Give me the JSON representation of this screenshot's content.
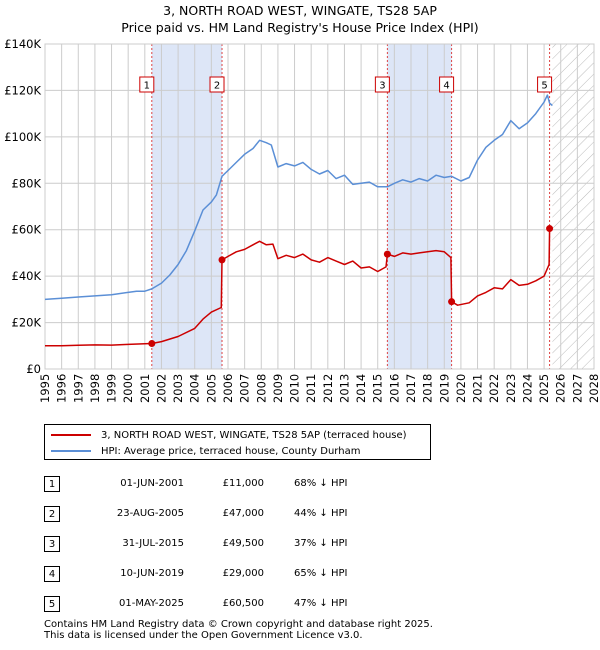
{
  "title_line1": "3, NORTH ROAD WEST, WINGATE, TS28 5AP",
  "title_line2": "Price paid vs. HM Land Registry's House Price Index (HPI)",
  "colors": {
    "property": "#cc0000",
    "hpi": "#5b8fd6",
    "shade": "#dde6f7",
    "grid": "#cccccc"
  },
  "chart_data": {
    "type": "line",
    "title": "3, NORTH ROAD WEST, WINGATE, TS28 5AP",
    "xlabel": "",
    "ylabel": "",
    "xlim": [
      1995,
      2028
    ],
    "ylim": [
      0,
      140000
    ],
    "x_ticks": [
      "1995",
      "1996",
      "1997",
      "1998",
      "1999",
      "2000",
      "2001",
      "2002",
      "2003",
      "2004",
      "2005",
      "2006",
      "2007",
      "2008",
      "2009",
      "2010",
      "2011",
      "2012",
      "2013",
      "2014",
      "2015",
      "2016",
      "2017",
      "2018",
      "2019",
      "2020",
      "2021",
      "2022",
      "2023",
      "2024",
      "2025",
      "2026",
      "2027",
      "2028"
    ],
    "y_ticks": [
      {
        "value": 0,
        "label": "£0"
      },
      {
        "value": 20000,
        "label": "£20K"
      },
      {
        "value": 40000,
        "label": "£40K"
      },
      {
        "value": 60000,
        "label": "£60K"
      },
      {
        "value": 80000,
        "label": "£80K"
      },
      {
        "value": 100000,
        "label": "£100K"
      },
      {
        "value": 120000,
        "label": "£120K"
      },
      {
        "value": 140000,
        "label": "£140K"
      }
    ],
    "shaded_ranges": [
      [
        2001.42,
        2005.64
      ],
      [
        2015.58,
        2019.44
      ]
    ],
    "hatched_from": 2025.5,
    "series": [
      {
        "name": "3, NORTH ROAD WEST, WINGATE, TS28 5AP (terraced house)",
        "x": [
          1995.0,
          1996.0,
          1997.0,
          1998.0,
          1999.0,
          2000.0,
          2001.0,
          2001.42,
          2002.0,
          2003.0,
          2004.0,
          2004.5,
          2005.0,
          2005.6,
          2005.64,
          2006.0,
          2006.5,
          2007.0,
          2007.5,
          2007.9,
          2008.3,
          2008.7,
          2009.0,
          2009.5,
          2010.0,
          2010.5,
          2011.0,
          2011.5,
          2012.0,
          2012.5,
          2013.0,
          2013.5,
          2014.0,
          2014.5,
          2015.0,
          2015.5,
          2015.58,
          2016.0,
          2016.5,
          2017.0,
          2017.5,
          2018.0,
          2018.5,
          2019.0,
          2019.4,
          2019.44,
          2019.8,
          2020.5,
          2021.0,
          2021.5,
          2022.0,
          2022.5,
          2023.0,
          2023.5,
          2024.0,
          2024.5,
          2025.0,
          2025.3,
          2025.33,
          2025.5
        ],
        "y": [
          10000,
          10000,
          10200,
          10400,
          10300,
          10600,
          10900,
          11000,
          11800,
          14000,
          17500,
          21500,
          24500,
          26500,
          47000,
          48500,
          50500,
          51500,
          53500,
          55000,
          53500,
          53800,
          47500,
          49000,
          48000,
          49500,
          47000,
          46000,
          48000,
          46500,
          45000,
          46500,
          43500,
          44000,
          42000,
          44000,
          49500,
          48500,
          50000,
          49500,
          50000,
          50500,
          51000,
          50500,
          48000,
          29000,
          27500,
          28500,
          31500,
          33000,
          35000,
          34500,
          38500,
          36000,
          36500,
          38000,
          40000,
          45000,
          60500,
          60500
        ]
      },
      {
        "name": "HPI: Average price, terraced house, County Durham",
        "x": [
          1995.0,
          1996.0,
          1997.0,
          1998.0,
          1999.0,
          2000.0,
          2000.5,
          2001.0,
          2001.42,
          2002.0,
          2002.5,
          2003.0,
          2003.5,
          2004.0,
          2004.5,
          2005.0,
          2005.3,
          2005.64,
          2006.0,
          2006.5,
          2007.0,
          2007.5,
          2007.9,
          2008.3,
          2008.6,
          2009.0,
          2009.5,
          2010.0,
          2010.5,
          2011.0,
          2011.5,
          2012.0,
          2012.5,
          2013.0,
          2013.5,
          2014.0,
          2014.5,
          2015.0,
          2015.58,
          2016.0,
          2016.5,
          2017.0,
          2017.5,
          2018.0,
          2018.5,
          2019.0,
          2019.44,
          2020.0,
          2020.5,
          2021.0,
          2021.5,
          2022.0,
          2022.5,
          2023.0,
          2023.5,
          2024.0,
          2024.5,
          2025.0,
          2025.2,
          2025.33,
          2025.5
        ],
        "y": [
          30000,
          30500,
          31000,
          31500,
          32000,
          33000,
          33500,
          33500,
          34500,
          37000,
          40500,
          45000,
          51000,
          59500,
          68500,
          72000,
          75000,
          83000,
          85500,
          89000,
          92500,
          95000,
          98500,
          97500,
          96500,
          87000,
          88500,
          87500,
          89000,
          86000,
          84000,
          85500,
          82000,
          83500,
          79500,
          80000,
          80500,
          78500,
          78500,
          80000,
          81500,
          80500,
          82000,
          81000,
          83500,
          82500,
          83000,
          81000,
          82500,
          90000,
          95500,
          98500,
          101000,
          107000,
          103500,
          106000,
          110000,
          115000,
          118000,
          114500,
          113500
        ]
      }
    ],
    "sales": [
      {
        "n": "1",
        "x": 2001.42,
        "price": 11000
      },
      {
        "n": "2",
        "x": 2005.64,
        "price": 47000
      },
      {
        "n": "3",
        "x": 2015.58,
        "price": 49500
      },
      {
        "n": "4",
        "x": 2019.44,
        "price": 29000
      },
      {
        "n": "5",
        "x": 2025.33,
        "price": 60500
      }
    ]
  },
  "legend": {
    "property": "3, NORTH ROAD WEST, WINGATE, TS28 5AP (terraced house)",
    "hpi": "HPI: Average price, terraced house, County Durham"
  },
  "sales_table": [
    {
      "num": "1",
      "date": "01-JUN-2001",
      "price": "£11,000",
      "hpi": "68% ↓ HPI"
    },
    {
      "num": "2",
      "date": "23-AUG-2005",
      "price": "£47,000",
      "hpi": "44% ↓ HPI"
    },
    {
      "num": "3",
      "date": "31-JUL-2015",
      "price": "£49,500",
      "hpi": "37% ↓ HPI"
    },
    {
      "num": "4",
      "date": "10-JUN-2019",
      "price": "£29,000",
      "hpi": "65% ↓ HPI"
    },
    {
      "num": "5",
      "date": "01-MAY-2025",
      "price": "£60,500",
      "hpi": "47% ↓ HPI"
    }
  ],
  "footer_line1": "Contains HM Land Registry data © Crown copyright and database right 2025.",
  "footer_line2": "This data is licensed under the Open Government Licence v3.0."
}
